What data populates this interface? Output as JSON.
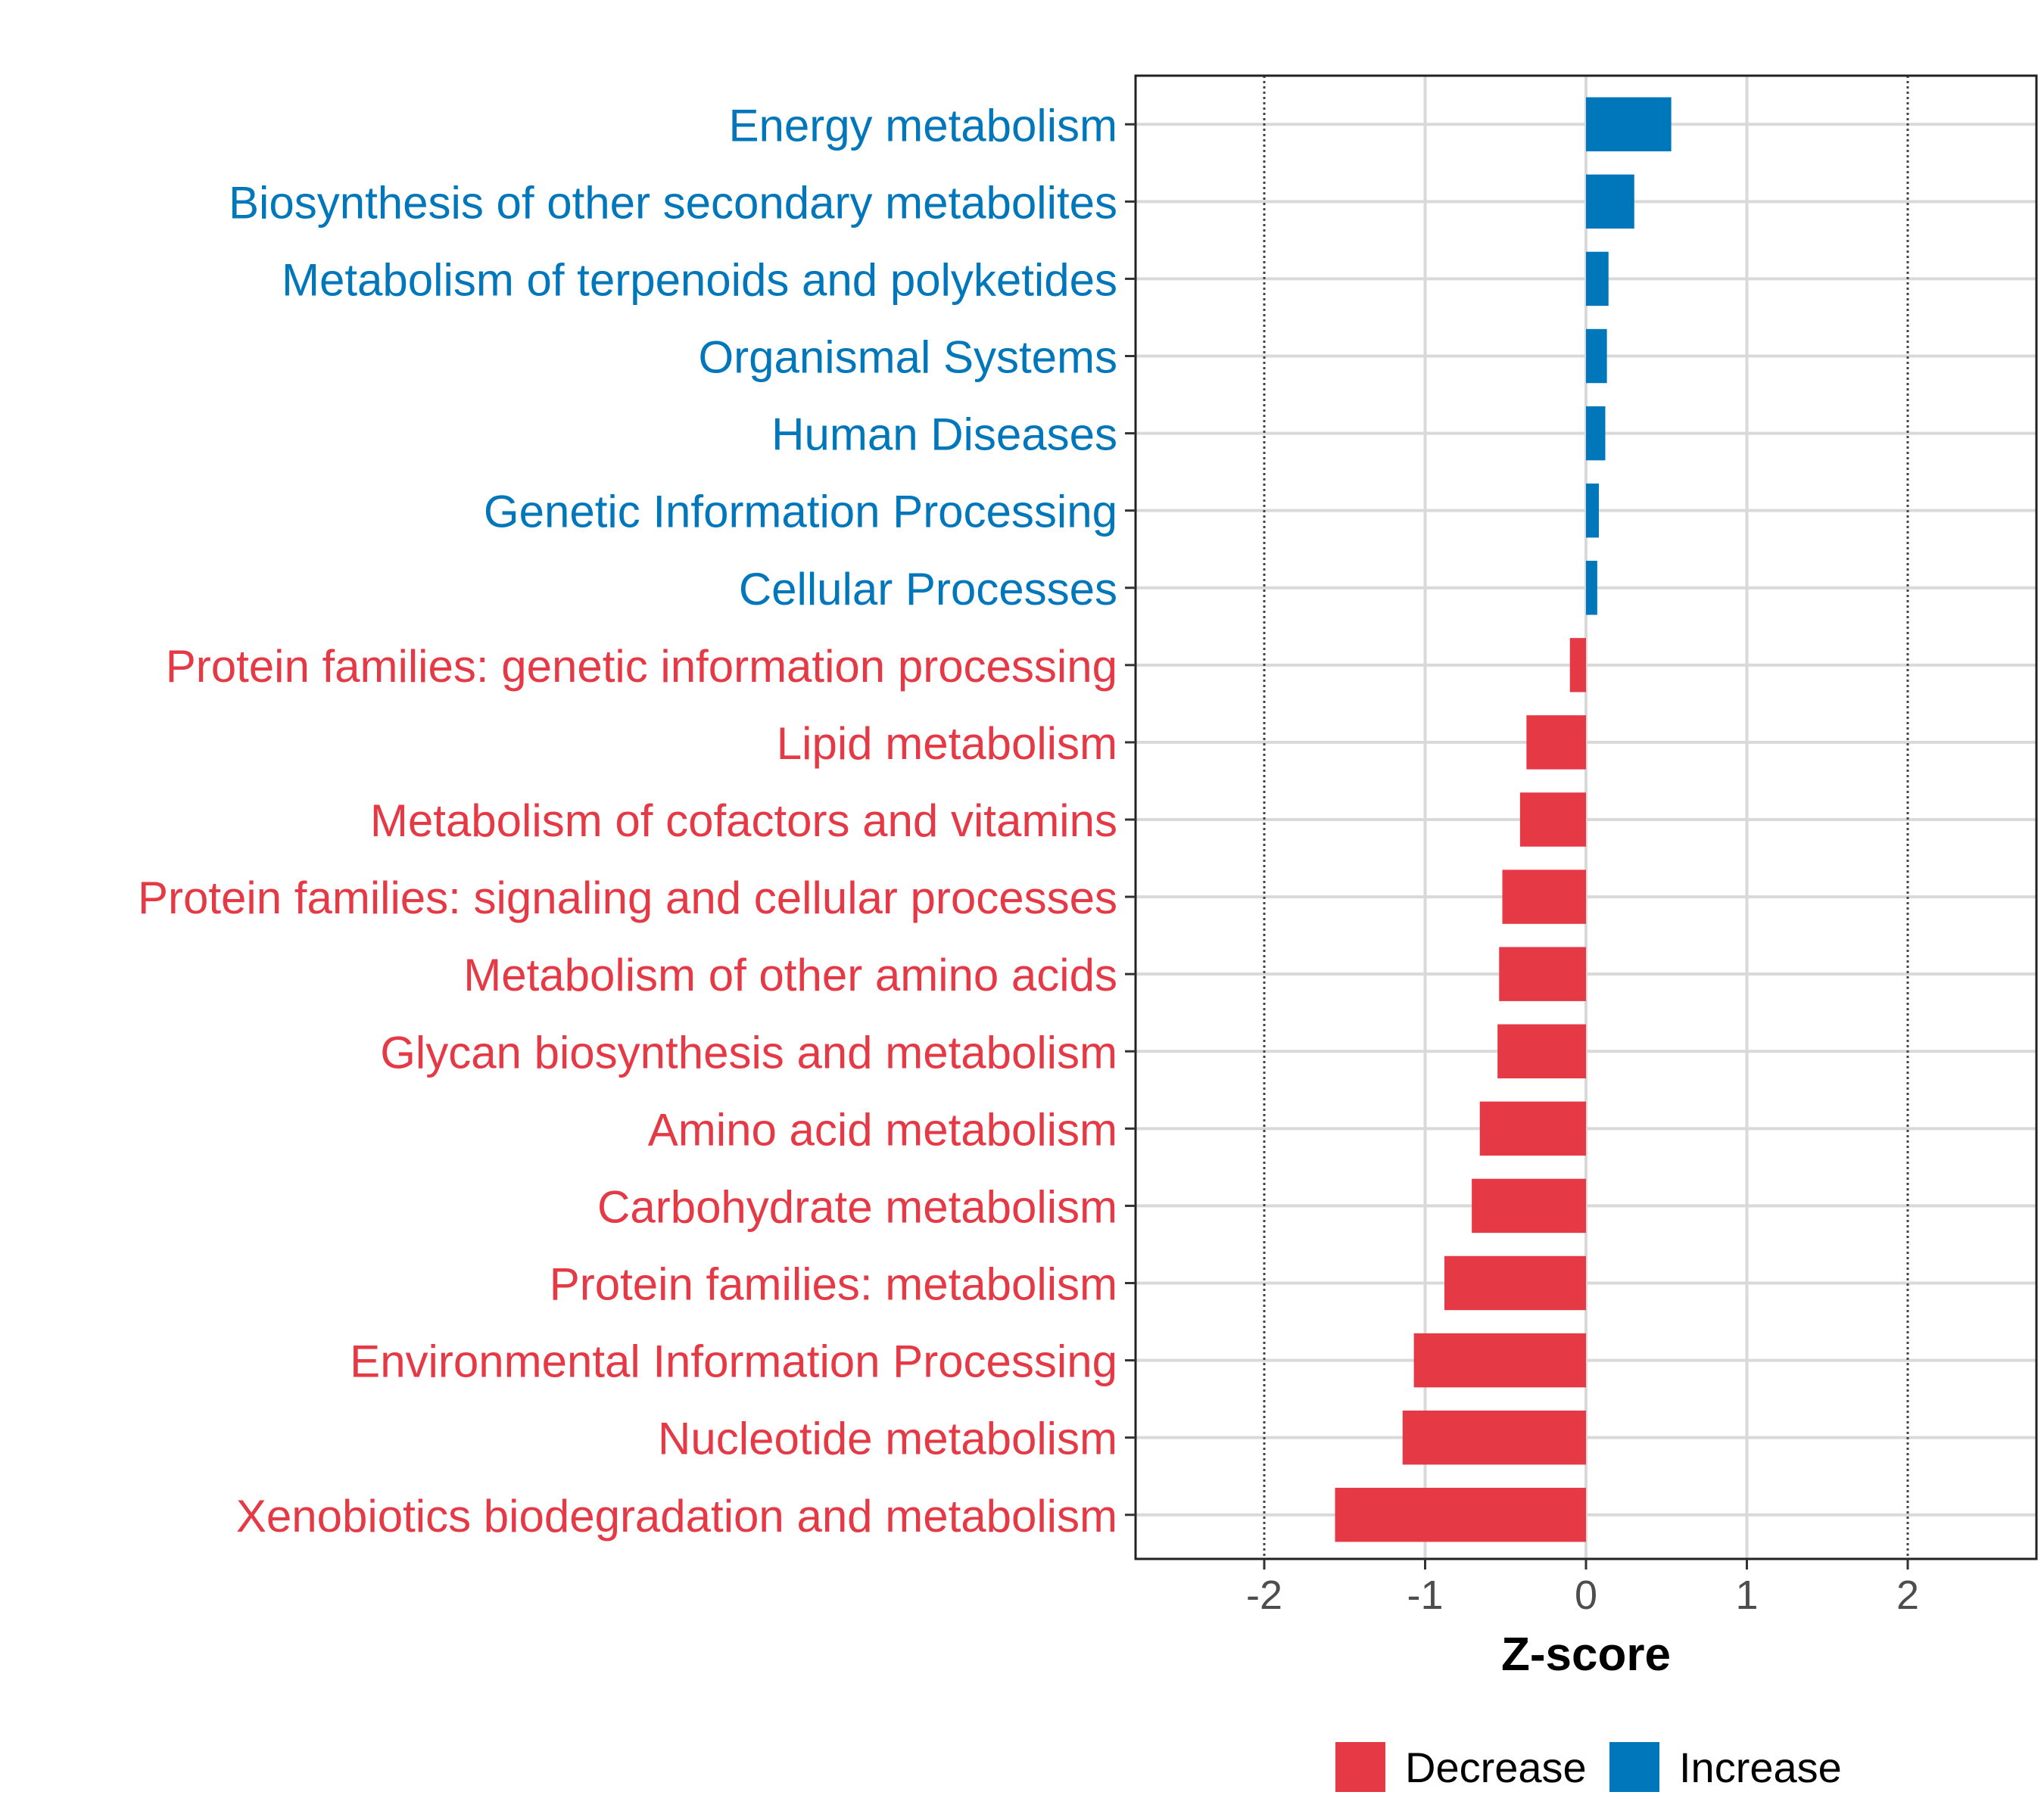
{
  "chart_data": {
    "type": "bar",
    "orientation": "horizontal",
    "categories": [
      "Energy metabolism",
      "Biosynthesis of other secondary metabolites",
      "Metabolism of terpenoids and polyketides",
      "Organismal Systems",
      "Human Diseases",
      "Genetic Information Processing",
      "Cellular Processes",
      "Protein families: genetic information processing",
      "Lipid metabolism",
      "Metabolism of cofactors and vitamins",
      "Protein families: signaling and cellular processes",
      "Metabolism of other amino acids",
      "Glycan biosynthesis and metabolism",
      "Amino acid metabolism",
      "Carbohydrate metabolism",
      "Protein families: metabolism",
      "Environmental Information Processing",
      "Nucleotide metabolism",
      "Xenobiotics biodegradation and metabolism"
    ],
    "values": [
      0.53,
      0.3,
      0.14,
      0.13,
      0.12,
      0.08,
      0.07,
      -0.1,
      -0.37,
      -0.41,
      -0.52,
      -0.54,
      -0.55,
      -0.66,
      -0.71,
      -0.88,
      -1.07,
      -1.14,
      -1.56
    ],
    "groups": [
      "Increase",
      "Increase",
      "Increase",
      "Increase",
      "Increase",
      "Increase",
      "Increase",
      "Decrease",
      "Decrease",
      "Decrease",
      "Decrease",
      "Decrease",
      "Decrease",
      "Decrease",
      "Decrease",
      "Decrease",
      "Decrease",
      "Decrease",
      "Decrease"
    ],
    "xlabel": "Z-score",
    "ylabel": "",
    "xlim": [
      -2.8,
      2.8
    ],
    "x_ticks": [
      -2,
      -1,
      0,
      1,
      2
    ],
    "x_tick_labels": [
      "-2",
      "-1",
      "0",
      "1",
      "2"
    ],
    "reference_lines": [
      -2,
      2
    ],
    "grid": true,
    "legend": {
      "position": "bottom",
      "entries": [
        {
          "label": "Decrease",
          "color": "#E63946"
        },
        {
          "label": "Increase",
          "color": "#0077BB"
        }
      ]
    },
    "colors": {
      "Decrease": "#E63946",
      "Increase": "#0077BB"
    }
  }
}
